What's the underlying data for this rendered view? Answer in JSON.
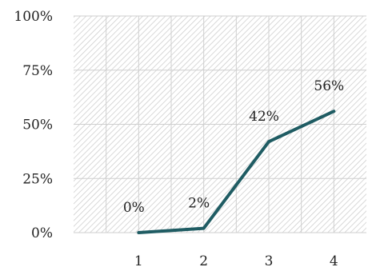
{
  "chart_data": {
    "type": "line",
    "title": "",
    "xlabel": "",
    "ylabel": "",
    "categories": [
      "1",
      "2",
      "3",
      "4"
    ],
    "x": [
      1.0,
      2.0,
      3.0,
      4.0
    ],
    "xlim": [
      0.0,
      4.5
    ],
    "ylim": [
      0,
      100
    ],
    "y_ticks": [
      "0%",
      "25%",
      "50%",
      "75%",
      "100%"
    ],
    "x_ticks": [
      "1",
      "2",
      "3",
      "4"
    ],
    "series": [
      {
        "values": [
          0,
          2,
          42,
          56
        ],
        "labels": [
          "0%",
          "2%",
          "42%",
          "56%"
        ]
      }
    ],
    "grid": true,
    "legend": "none",
    "line_color": "#1f5c63",
    "plot_background": "hatched"
  }
}
